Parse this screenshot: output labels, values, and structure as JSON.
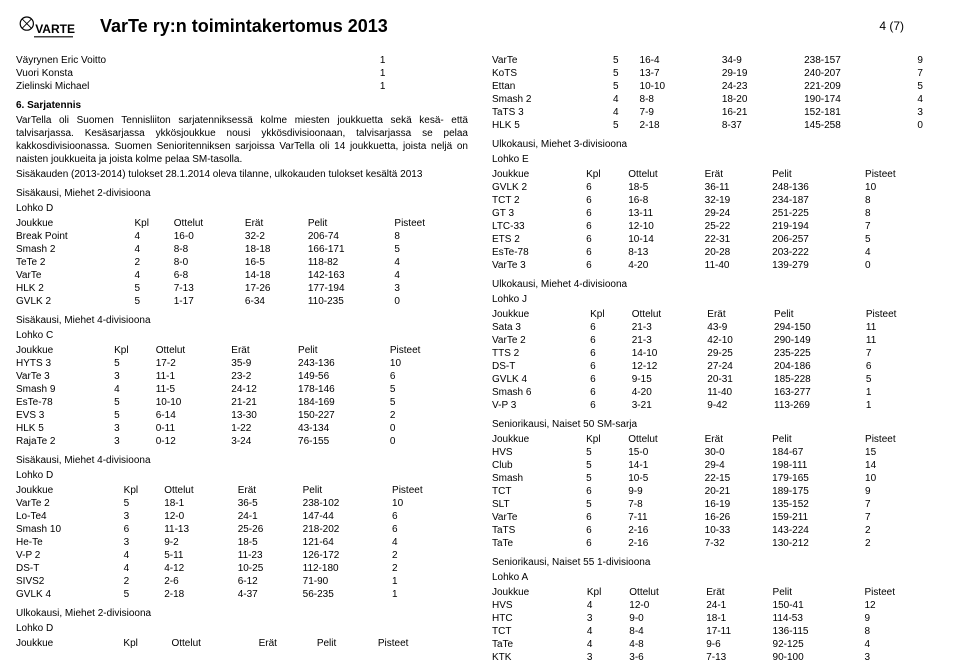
{
  "header": {
    "logo_text": "VARTE",
    "title": "VarTe ry:n toimintakertomus 2013",
    "page": "4 (7)"
  },
  "players": [
    [
      "Väyrynen Eric Voitto",
      "1"
    ],
    [
      "Vuori Konsta",
      "1"
    ],
    [
      "Zielinski Michael",
      "1"
    ]
  ],
  "section6": {
    "num": "6.",
    "title": "Sarjatennis",
    "body": "VarTella oli Suomen Tennisliiton sarjatenniksessä kolme miesten joukkuetta sekä kesä- että talvisarjassa. Kesäsarjassa ykkösjoukkue nousi ykkösdivisioonaan, talvisarjassa se pelaa kakkosdivisioonassa. Suomen Senioritenniksen sarjoissa VarTella oli 14 joukkuetta, joista neljä on naisten joukkueita ja joista kolme pelaa SM-tasolla.",
    "body2": "Sisäkauden (2013-2014) tulokset 28.1.2014 oleva tilanne, ulkokauden tulokset kesältä 2013"
  },
  "table_headers": [
    "Joukkue",
    "Kpl",
    "Ottelut",
    "Erät",
    "Pelit",
    "Pisteet"
  ],
  "left_tables": [
    {
      "heading": "Sisäkausi, Miehet   2-divisioona",
      "sub": "Lohko D",
      "rows": [
        [
          "Break Point",
          "4",
          "16-0",
          "32-2",
          "206-74",
          "8"
        ],
        [
          "Smash 2",
          "4",
          "8-8",
          "18-18",
          "166-171",
          "5"
        ],
        [
          "TeTe 2",
          "2",
          "8-0",
          "16-5",
          "118-82",
          "4"
        ],
        [
          "VarTe",
          "4",
          "6-8",
          "14-18",
          "142-163",
          "4"
        ],
        [
          "HLK 2",
          "5",
          "7-13",
          "17-26",
          "177-194",
          "3"
        ],
        [
          "GVLK 2",
          "5",
          "1-17",
          "6-34",
          "110-235",
          "0"
        ]
      ]
    },
    {
      "heading": "Sisäkausi, Miehet   4-divisioona",
      "sub": "Lohko C",
      "rows": [
        [
          "HYTS 3",
          "5",
          "17-2",
          "35-9",
          "243-136",
          "10"
        ],
        [
          "VarTe 3",
          "3",
          "11-1",
          "23-2",
          "149-56",
          "6"
        ],
        [
          "Smash 9",
          "4",
          "11-5",
          "24-12",
          "178-146",
          "5"
        ],
        [
          "EsTe-78",
          "5",
          "10-10",
          "21-21",
          "184-169",
          "5"
        ],
        [
          "EVS 3",
          "5",
          "6-14",
          "13-30",
          "150-227",
          "2"
        ],
        [
          "HLK 5",
          "3",
          "0-11",
          "1-22",
          "43-134",
          "0"
        ],
        [
          "RajaTe 2",
          "3",
          "0-12",
          "3-24",
          "76-155",
          "0"
        ]
      ]
    },
    {
      "heading": "Sisäkausi, Miehet   4-divisioona",
      "sub": "Lohko D",
      "rows": [
        [
          "VarTe 2",
          "5",
          "18-1",
          "36-5",
          "238-102",
          "10"
        ],
        [
          "Lo-Te4",
          "3",
          "12-0",
          "24-1",
          "147-44",
          "6"
        ],
        [
          "Smash 10",
          "6",
          "11-13",
          "25-26",
          "218-202",
          "6"
        ],
        [
          "He-Te",
          "3",
          "9-2",
          "18-5",
          "121-64",
          "4"
        ],
        [
          "V-P 2",
          "4",
          "5-11",
          "11-23",
          "126-172",
          "2"
        ],
        [
          "DS-T",
          "4",
          "4-12",
          "10-25",
          "112-180",
          "2"
        ],
        [
          "SIVS2",
          "2",
          "2-6",
          "6-12",
          "71-90",
          "1"
        ],
        [
          "GVLK 4",
          "5",
          "2-18",
          "4-37",
          "56-235",
          "1"
        ]
      ]
    },
    {
      "heading": "Ulkokausi, Miehet   2-divisioona",
      "sub": "Lohko D",
      "rows": []
    }
  ],
  "right_tables": [
    {
      "heading": "",
      "sub": "",
      "noheader": true,
      "rows": [
        [
          "VarTe",
          "5",
          "16-4",
          "34-9",
          "238-157",
          "9"
        ],
        [
          "KoTS",
          "5",
          "13-7",
          "29-19",
          "240-207",
          "7"
        ],
        [
          "Ettan",
          "5",
          "10-10",
          "24-23",
          "221-209",
          "5"
        ],
        [
          "Smash 2",
          "4",
          "8-8",
          "18-20",
          "190-174",
          "4"
        ],
        [
          "TaTS 3",
          "4",
          "7-9",
          "16-21",
          "152-181",
          "3"
        ],
        [
          "HLK 5",
          "5",
          "2-18",
          "8-37",
          "145-258",
          "0"
        ]
      ]
    },
    {
      "heading": "Ulkokausi, Miehet   3-divisioona",
      "sub": "Lohko E",
      "rows": [
        [
          "GVLK 2",
          "6",
          "18-5",
          "36-11",
          "248-136",
          "10"
        ],
        [
          "TCT 2",
          "6",
          "16-8",
          "32-19",
          "234-187",
          "8"
        ],
        [
          "GT 3",
          "6",
          "13-11",
          "29-24",
          "251-225",
          "8"
        ],
        [
          "LTC-33",
          "6",
          "12-10",
          "25-22",
          "219-194",
          "7"
        ],
        [
          "ETS 2",
          "6",
          "10-14",
          "22-31",
          "206-257",
          "5"
        ],
        [
          "EsTe-78",
          "6",
          "8-13",
          "20-28",
          "203-222",
          "4"
        ],
        [
          "VarTe 3",
          "6",
          "4-20",
          "11-40",
          "139-279",
          "0"
        ]
      ]
    },
    {
      "heading": "Ulkokausi, Miehet   4-divisioona",
      "sub": "Lohko J",
      "rows": [
        [
          "Sata 3",
          "6",
          "21-3",
          "43-9",
          "294-150",
          "11"
        ],
        [
          "VarTe 2",
          "6",
          "21-3",
          "42-10",
          "290-149",
          "11"
        ],
        [
          "TTS 2",
          "6",
          "14-10",
          "29-25",
          "235-225",
          "7"
        ],
        [
          "DS-T",
          "6",
          "12-12",
          "27-24",
          "204-186",
          "6"
        ],
        [
          "GVLK 4",
          "6",
          "9-15",
          "20-31",
          "185-228",
          "5"
        ],
        [
          "Smash 6",
          "6",
          "4-20",
          "11-40",
          "163-277",
          "1"
        ],
        [
          "V-P 3",
          "6",
          "3-21",
          "9-42",
          "113-269",
          "1"
        ]
      ]
    },
    {
      "heading": "Seniorikausi, Naiset 50  SM-sarja",
      "sub": "",
      "rows": [
        [
          "HVS",
          "5",
          "15-0",
          "30-0",
          "184-67",
          "15"
        ],
        [
          "Club",
          "5",
          "14-1",
          "29-4",
          "198-111",
          "14"
        ],
        [
          "Smash",
          "5",
          "10-5",
          "22-15",
          "179-165",
          "10"
        ],
        [
          "TCT",
          "6",
          "9-9",
          "20-21",
          "189-175",
          "9"
        ],
        [
          "SLT",
          "5",
          "7-8",
          "16-19",
          "135-152",
          "7"
        ],
        [
          "VarTe",
          "6",
          "7-11",
          "16-26",
          "159-211",
          "7"
        ],
        [
          "TaTS",
          "6",
          "2-16",
          "10-33",
          "143-224",
          "2"
        ],
        [
          "TaTe",
          "6",
          "2-16",
          "7-32",
          "130-212",
          "2"
        ]
      ]
    },
    {
      "heading": "Seniorikausi, Naiset 55  1-divisioona",
      "sub": "Lohko A",
      "rows": [
        [
          "HVS",
          "4",
          "12-0",
          "24-1",
          "150-41",
          "12"
        ],
        [
          "HTC",
          "3",
          "9-0",
          "18-1",
          "114-53",
          "9"
        ],
        [
          "TCT",
          "4",
          "8-4",
          "17-11",
          "136-115",
          "8"
        ],
        [
          "TaTe",
          "4",
          "4-8",
          "9-6",
          "92-125",
          "4"
        ],
        [
          "KTK",
          "3",
          "3-6",
          "7-13",
          "90-100",
          "3"
        ]
      ]
    }
  ]
}
